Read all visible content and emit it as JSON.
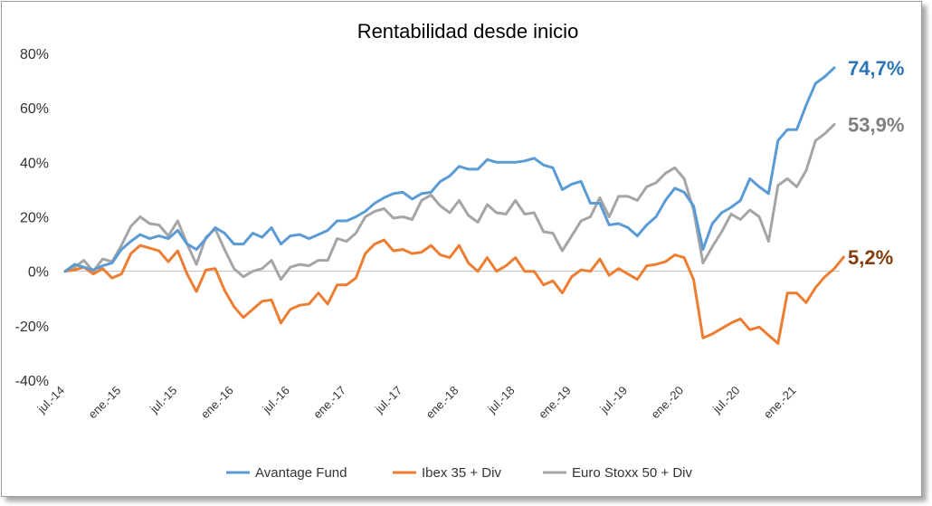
{
  "chart_data": {
    "type": "line",
    "title": "Rentabilidad desde inicio",
    "xlabel": "",
    "ylabel": "",
    "ylim": [
      -40,
      80
    ],
    "yticks": [
      -40,
      -20,
      0,
      20,
      40,
      60,
      80
    ],
    "ytick_labels": [
      "-40%",
      "-20%",
      "0%",
      "20%",
      "40%",
      "60%",
      "80%"
    ],
    "xticks": [
      {
        "i": 0,
        "label": "jul.-14"
      },
      {
        "i": 6,
        "label": "ene.-15"
      },
      {
        "i": 12,
        "label": "jul.-15"
      },
      {
        "i": 18,
        "label": "ene.-16"
      },
      {
        "i": 24,
        "label": "jul.-16"
      },
      {
        "i": 30,
        "label": "ene.-17"
      },
      {
        "i": 36,
        "label": "jul.-17"
      },
      {
        "i": 42,
        "label": "ene.-18"
      },
      {
        "i": 48,
        "label": "jul.-18"
      },
      {
        "i": 54,
        "label": "ene.-19"
      },
      {
        "i": 60,
        "label": "jul.-19"
      },
      {
        "i": 66,
        "label": "ene.-20"
      },
      {
        "i": 72,
        "label": "jul.-20"
      },
      {
        "i": 78,
        "label": "ene.-21"
      }
    ],
    "grid": true,
    "legend_position": "bottom",
    "series": [
      {
        "name": "Avantage Fund",
        "color": "#5B9BD5",
        "end_label": "74,7%",
        "end_label_color": "#2E75B6",
        "values": [
          0,
          2.5,
          1.5,
          0.5,
          2,
          3,
          8,
          11,
          13.5,
          12,
          13,
          12,
          15,
          10,
          8,
          12,
          16,
          14,
          10,
          10,
          14,
          12.5,
          16,
          10,
          13,
          13.5,
          12,
          13.5,
          15,
          18.5,
          18.5,
          20,
          22,
          25,
          27,
          28.5,
          29,
          26.5,
          28.5,
          29,
          33,
          35,
          38.5,
          37.5,
          37.5,
          41,
          40,
          40,
          40,
          40.5,
          41.5,
          39,
          38,
          30,
          32,
          33,
          25,
          25,
          17,
          17.5,
          16,
          13,
          17,
          20,
          26,
          30.5,
          29,
          24,
          8,
          17.5,
          21.5,
          23.5,
          26,
          34,
          31,
          28.5,
          48,
          52,
          52,
          61,
          69,
          71.5,
          74.7
        ]
      },
      {
        "name": "Ibex 35 + Div",
        "color": "#ED7D31",
        "end_label": "5,2%",
        "end_label_color": "#843C0C",
        "values": [
          0,
          0.5,
          1.5,
          -1,
          1,
          -2.5,
          -1,
          6.5,
          9.5,
          8.5,
          7.5,
          3.5,
          7.5,
          -1,
          -7.5,
          0.5,
          1,
          -7,
          -13,
          -17,
          -14,
          -11,
          -10.5,
          -19,
          -14,
          -12.5,
          -12,
          -8,
          -12,
          -5,
          -5,
          -2.5,
          6.5,
          10,
          11.5,
          7.5,
          8,
          6.5,
          7,
          9.5,
          6,
          5,
          9.5,
          3,
          0,
          5,
          0,
          2,
          5,
          0,
          0,
          -5,
          -3.5,
          -8,
          -2,
          0.5,
          0,
          4.5,
          -1.5,
          1,
          -1,
          -3,
          2,
          2.5,
          3.5,
          6,
          5,
          -3,
          -24.5,
          -23,
          -21,
          -19,
          -17.5,
          -21.5,
          -20.5,
          -23.5,
          -26.5,
          -8,
          -8,
          -11.5,
          -6,
          -2,
          1,
          5.2
        ]
      },
      {
        "name": "Euro Stoxx 50 + Div",
        "color": "#A5A5A5",
        "end_label": "53,9%",
        "end_label_color": "#7F7F7F",
        "values": [
          0,
          1.5,
          4,
          0,
          4.5,
          3.5,
          9.5,
          16.5,
          20,
          17.5,
          17,
          13,
          18.5,
          10,
          2.5,
          12.5,
          15.5,
          8,
          1,
          -2,
          0,
          1,
          4,
          -3,
          1.5,
          2.5,
          2,
          4,
          4,
          12,
          11,
          14,
          20,
          22,
          23,
          19.5,
          20,
          19,
          26,
          28,
          24,
          21.5,
          26,
          20.5,
          18,
          24.5,
          21.5,
          21,
          26,
          21,
          21.5,
          14.5,
          14,
          7.5,
          13,
          18.5,
          20,
          27,
          20,
          27.5,
          27.5,
          26,
          31,
          32.5,
          36,
          38,
          34,
          22.5,
          3,
          9,
          14.5,
          21,
          19,
          22.5,
          20,
          11,
          31.5,
          34,
          31,
          37,
          48,
          50.5,
          53.9
        ]
      }
    ]
  }
}
